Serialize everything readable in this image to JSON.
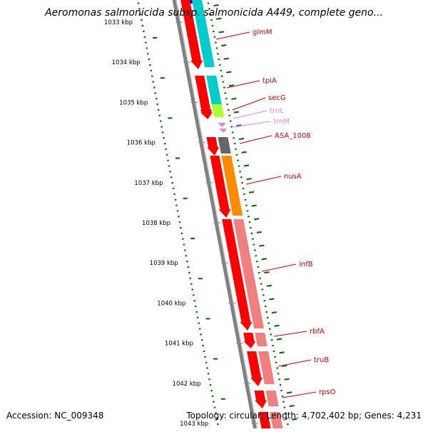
{
  "title": "Aeromonas salmonicida subsp. salmonicida A449, complete geno...",
  "footer": {
    "accession": "Accession: NC_009348",
    "summary": "Topology: circular; Length: 4,702,402 bp; Genes: 4,231"
  },
  "colors": {
    "forward_cds": "#ff0000",
    "trna": "#ee82c8",
    "gene_label": "#cc0000",
    "trna_label": "#ee82c8",
    "axis": "#808080",
    "gc_skew": "#006400"
  },
  "scale": {
    "unit": "kbp",
    "ticks": [
      "1033 kbp",
      "1034 kbp",
      "1035 kbp",
      "1036 kbp",
      "1037 kbp",
      "1038 kbp",
      "1039 kbp",
      "1040 kbp",
      "1041 kbp",
      "1042 kbp",
      "1043 kbp"
    ]
  },
  "genes": [
    {
      "name": "glmM",
      "type": "CDS",
      "category_color": "#00cccc"
    },
    {
      "name": "tpiA",
      "type": "CDS",
      "category_color": "#00cccc"
    },
    {
      "name": "secG",
      "type": "CDS",
      "category_color": "#adff2f"
    },
    {
      "name": "trnL",
      "type": "tRNA",
      "category_color": "#ee82c8"
    },
    {
      "name": "trnM",
      "type": "tRNA",
      "category_color": "#ee82c8"
    },
    {
      "name": "ASA_1008",
      "type": "CDS",
      "category_color": "#666666"
    },
    {
      "name": "nusA",
      "type": "CDS",
      "category_color": "#ff8c00"
    },
    {
      "name": "infB",
      "type": "CDS",
      "category_color": "#f08080"
    },
    {
      "name": "rbfA",
      "type": "CDS",
      "category_color": "#f08080"
    },
    {
      "name": "truB",
      "type": "CDS",
      "category_color": "#f08080"
    },
    {
      "name": "rpsO",
      "type": "CDS",
      "category_color": "#f08080"
    }
  ]
}
